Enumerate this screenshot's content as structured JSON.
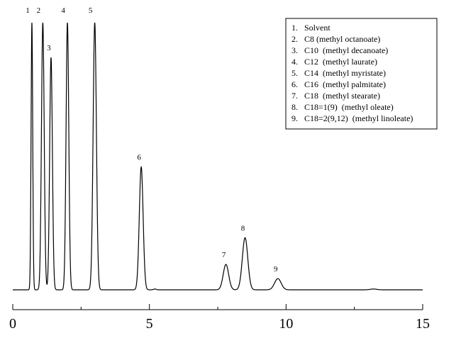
{
  "chart_data": {
    "type": "line",
    "title": "",
    "xlabel": "",
    "ylabel": "",
    "xlim": [
      0,
      15
    ],
    "ylim": [
      0,
      1
    ],
    "grid": false,
    "x_ticks": [
      0,
      5,
      10,
      15
    ],
    "x_tick_labels": [
      "0",
      "5",
      "10",
      "15"
    ],
    "x_minor_ticks": [
      2.5,
      7.5,
      12.5
    ],
    "baseline": 0,
    "series": [
      {
        "peaks": [
          {
            "label": "1",
            "x": 0.7,
            "height": 1.0,
            "width": 0.03
          },
          {
            "label": "2",
            "x": 1.1,
            "height": 1.0,
            "width": 0.05
          },
          {
            "label": "3",
            "x": 1.4,
            "height": 0.87,
            "width": 0.05
          },
          {
            "label": "4",
            "x": 2.0,
            "height": 1.0,
            "width": 0.05
          },
          {
            "label": "5",
            "x": 3.0,
            "height": 1.0,
            "width": 0.06
          },
          {
            "label": "6",
            "x": 4.7,
            "height": 0.46,
            "width": 0.07
          },
          {
            "label": "7",
            "x": 7.8,
            "height": 0.095,
            "width": 0.1
          },
          {
            "label": "8",
            "x": 8.5,
            "height": 0.195,
            "width": 0.1
          },
          {
            "label": "9",
            "x": 9.7,
            "height": 0.042,
            "width": 0.12
          }
        ],
        "minor_features": [
          {
            "x": 5.2,
            "height": 0.003,
            "width": 0.05
          },
          {
            "x": 13.2,
            "height": 0.003,
            "width": 0.12
          }
        ]
      }
    ],
    "legend": {
      "position": "top-right",
      "items": [
        "1.   Solvent",
        "2.   C8 (methyl octanoate)",
        "3.   C10  (methyl decanoate)",
        "4.   C12  (methyl laurate)",
        "5.   C14  (methyl myristate)",
        "6.   C16  (methyl palmitate)",
        "7.   C18  (methyl stearate)",
        "8.   C18=1(9)  (methyl oleate)",
        "9.   C18=2(9,12)  (methyl linoleate)"
      ]
    },
    "colors": {
      "line": "#000000",
      "background": "#ffffff"
    }
  }
}
